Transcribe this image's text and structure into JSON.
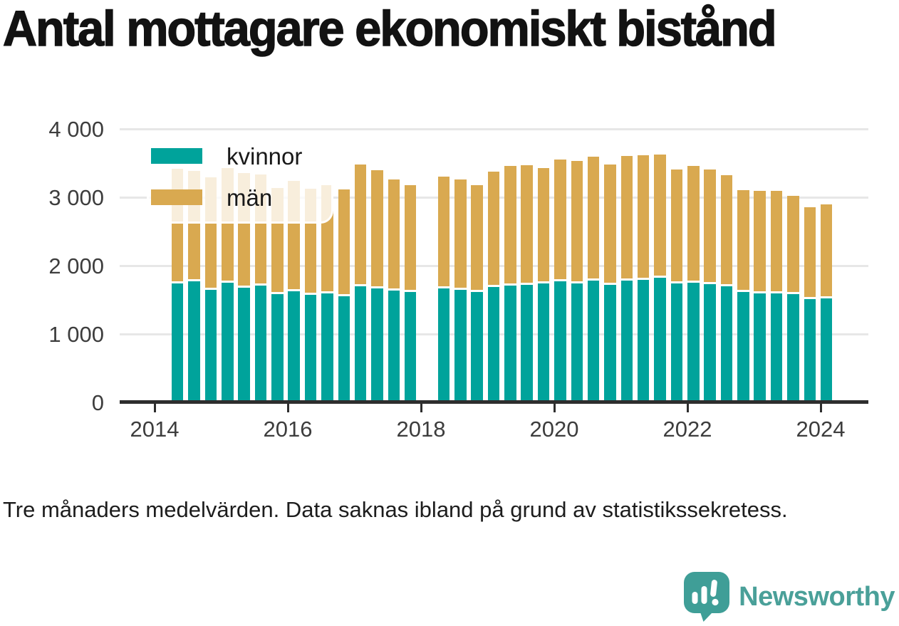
{
  "title": "Antal mottagare ekonomiskt bistånd",
  "footnote": "Tre månaders medelvärden. Data saknas ibland på grund av statistikssekretess.",
  "branding": {
    "wordmark": "Newsworthy",
    "icon": "newsworthy-speech-bubble-bar-chart-icon",
    "icon_color": "#3f9e97",
    "text_color": "#4aa099"
  },
  "colors": {
    "kvinnor": "#00a39b",
    "man": "#d9a950",
    "axis": "#2e2e2e",
    "grid": "#e7e7e7",
    "tick_text": "#3d3d3d",
    "missing_fade": "#f7eedd"
  },
  "legend": {
    "items": [
      {
        "label": "kvinnor",
        "color": "#00a39b"
      },
      {
        "label": "män",
        "color": "#d9a950"
      }
    ]
  },
  "chart_data": {
    "type": "bar",
    "stacked": true,
    "title": "Antal mottagare ekonomiskt bistånd",
    "xlabel": "",
    "ylabel": "",
    "ylim": [
      0,
      4000
    ],
    "grid": "horizontal",
    "legend_position": "top-left-inside",
    "note": "Tre månaders medelvärden. Data saknas ibland på grund av statistikssekretess.",
    "categories": [
      "2014-Q2",
      "2014-Q3",
      "2014-Q4",
      "2015-Q1",
      "2015-Q2",
      "2015-Q3",
      "2015-Q4",
      "2016-Q1",
      "2016-Q2",
      "2016-Q3",
      "2016-Q4",
      "2017-Q1",
      "2017-Q2",
      "2017-Q3",
      "2017-Q4",
      "2018-Q1",
      "2018-Q2",
      "2018-Q3",
      "2018-Q4",
      "2019-Q1",
      "2019-Q2",
      "2019-Q3",
      "2019-Q4",
      "2020-Q1",
      "2020-Q2",
      "2020-Q3",
      "2020-Q4",
      "2021-Q1",
      "2021-Q2",
      "2021-Q3",
      "2021-Q4",
      "2022-Q1",
      "2022-Q2",
      "2022-Q3",
      "2022-Q4",
      "2023-Q1",
      "2023-Q2",
      "2023-Q3",
      "2023-Q4",
      "2024-Q1"
    ],
    "series": [
      {
        "name": "kvinnor",
        "color": "#00a39b",
        "values": [
          1740,
          1770,
          1650,
          1750,
          1680,
          1710,
          1580,
          1630,
          1570,
          1590,
          1550,
          1700,
          1670,
          1640,
          1610,
          null,
          1670,
          1650,
          1610,
          1690,
          1710,
          1720,
          1740,
          1770,
          1740,
          1780,
          1720,
          1780,
          1790,
          1820,
          1740,
          1750,
          1730,
          1700,
          1610,
          1590,
          1590,
          1580,
          1510,
          1520
        ]
      },
      {
        "name": "män",
        "color": "#d9a950",
        "values": [
          1680,
          1620,
          1640,
          1680,
          1670,
          1620,
          1560,
          1610,
          1560,
          1590,
          1560,
          1780,
          1730,
          1620,
          1570,
          null,
          1630,
          1610,
          1570,
          1680,
          1750,
          1750,
          1690,
          1780,
          1790,
          1810,
          1760,
          1820,
          1820,
          1810,
          1670,
          1710,
          1680,
          1620,
          1490,
          1500,
          1500,
          1440,
          1340,
          1380
        ]
      }
    ],
    "missing_periods": [
      "2018-Q1"
    ],
    "yticks": [
      {
        "value": 0,
        "label": "0"
      },
      {
        "value": 1000,
        "label": "1 000"
      },
      {
        "value": 2000,
        "label": "2 000"
      },
      {
        "value": 3000,
        "label": "3 000"
      },
      {
        "value": 4000,
        "label": "4 000"
      }
    ],
    "xticks": [
      {
        "year": 2014,
        "label": "2014"
      },
      {
        "year": 2016,
        "label": "2016"
      },
      {
        "year": 2018,
        "label": "2018"
      },
      {
        "year": 2020,
        "label": "2020"
      },
      {
        "year": 2022,
        "label": "2022"
      },
      {
        "year": 2024,
        "label": "2024"
      }
    ]
  }
}
